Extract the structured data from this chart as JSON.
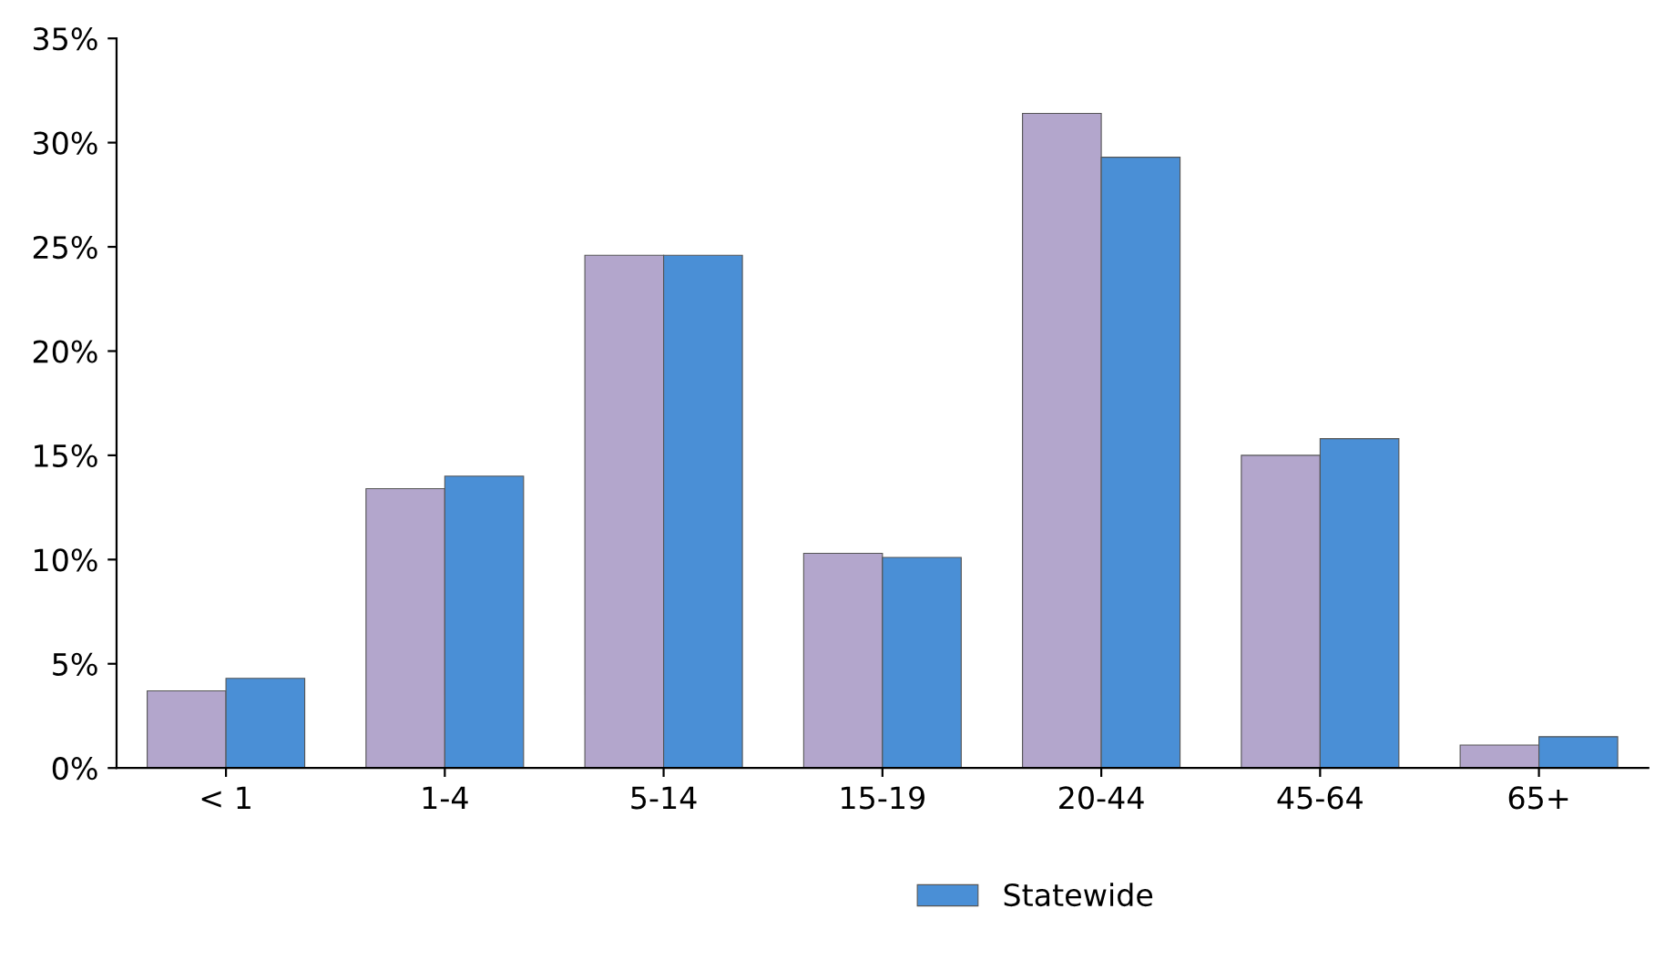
{
  "chart_data": {
    "type": "bar",
    "categories": [
      "< 1",
      "1-4",
      "5-14",
      "15-19",
      "20-44",
      "45-64",
      "65+"
    ],
    "series": [
      {
        "color": "#b3a6cc",
        "values": [
          3.7,
          13.4,
          24.6,
          10.3,
          31.4,
          15.0,
          1.1
        ]
      },
      {
        "name": "Statewide",
        "color": "#4a8fd6",
        "values": [
          4.3,
          14.0,
          24.6,
          10.1,
          29.3,
          15.8,
          1.5
        ]
      }
    ],
    "ylim": [
      0,
      35
    ],
    "yticks": [
      {
        "value": 0,
        "label": "0%"
      },
      {
        "value": 5,
        "label": "5%"
      },
      {
        "value": 10,
        "label": "10%"
      },
      {
        "value": 15,
        "label": "15%"
      },
      {
        "value": 20,
        "label": "20%"
      },
      {
        "value": 25,
        "label": "25%"
      },
      {
        "value": 30,
        "label": "30%"
      },
      {
        "value": 35,
        "label": "35%"
      }
    ],
    "grid": false,
    "legend": "bottom"
  }
}
